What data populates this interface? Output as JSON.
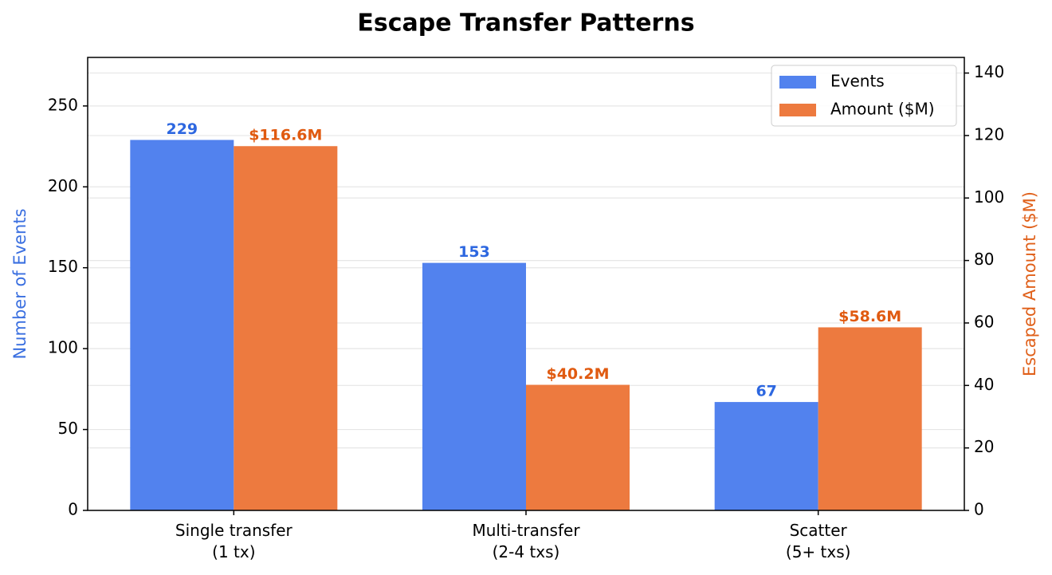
{
  "chart_data": {
    "type": "bar",
    "title": "Escape Transfer Patterns",
    "categories": [
      "Single transfer\n(1 tx)",
      "Multi-transfer\n(2-4 txs)",
      "Scatter\n(5+ txs)"
    ],
    "y_label": "Number of Events",
    "y2_label": "Escaped Amount ($M)",
    "series": [
      {
        "name": "Events",
        "color": "#5282ee",
        "values": [
          229,
          153,
          67
        ]
      },
      {
        "name": "Amount ($M)",
        "color": "#ed7a3f",
        "axis": "y2",
        "values": [
          116.6,
          40.2,
          58.6
        ],
        "value_labels": [
          "$116.6M",
          "$40.2M",
          "$58.6M"
        ]
      }
    ],
    "ylim": [
      0,
      280
    ],
    "yticks": [
      0,
      50,
      100,
      150,
      200,
      250
    ],
    "y2lim": [
      0,
      145
    ],
    "y2ticks": [
      0,
      20,
      40,
      60,
      80,
      100,
      120,
      140
    ],
    "grid": true,
    "legend": "upper-right"
  }
}
